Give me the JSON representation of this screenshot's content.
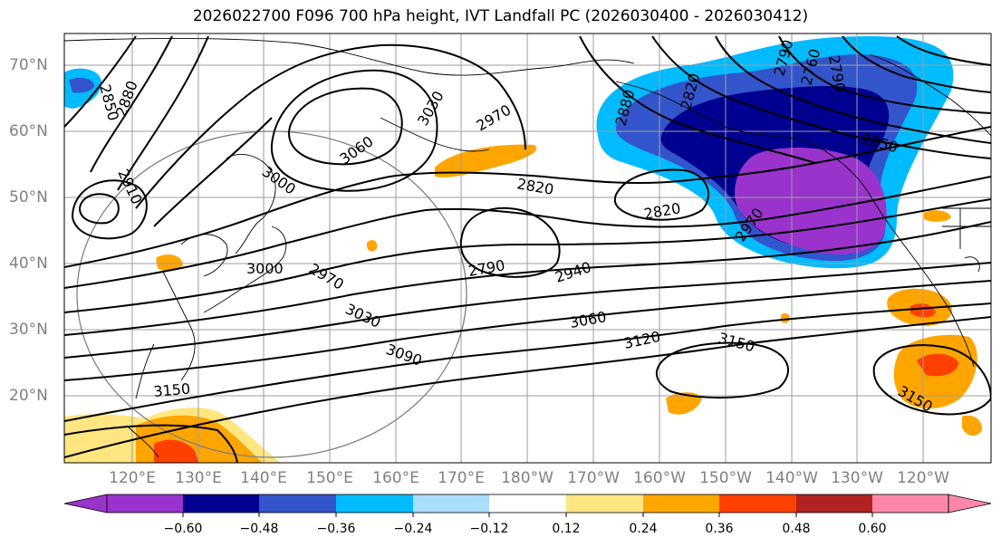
{
  "title": "2026022700 F096 700 hPa height, IVT Landfall PC (2026030400 - 2026030412)",
  "lat_labels": [
    "70°N",
    "60°N",
    "50°N",
    "40°N",
    "30°N",
    "20°N"
  ],
  "lon_labels": [
    "120°E",
    "130°E",
    "140°E",
    "150°E",
    "160°E",
    "170°E",
    "180°W",
    "170°W",
    "160°W",
    "150°W",
    "140°W",
    "130°W",
    "120°W"
  ],
  "contour_labels": [
    "2850",
    "2880",
    "2910",
    "3000",
    "3060",
    "3030",
    "2970",
    "2820",
    "2820",
    "2790",
    "2940",
    "2970",
    "3000",
    "3030",
    "3090",
    "3150",
    "3060",
    "3120",
    "3150",
    "3150",
    "2820",
    "2790",
    "2760",
    "2850",
    "2790",
    "2880",
    "2970"
  ],
  "colorbar": {
    "tick_labels": [
      "−0.60",
      "−0.48",
      "−0.36",
      "−0.24",
      "−0.12",
      "0.12",
      "0.24",
      "0.36",
      "0.48",
      "0.60"
    ],
    "colors": [
      "#9933cc",
      "#000090",
      "#3355cc",
      "#00bbff",
      "#aaddff",
      "#ffffff",
      "#ffe680",
      "#ffa500",
      "#ff4000",
      "#b22222",
      "#ff88aa"
    ]
  }
}
